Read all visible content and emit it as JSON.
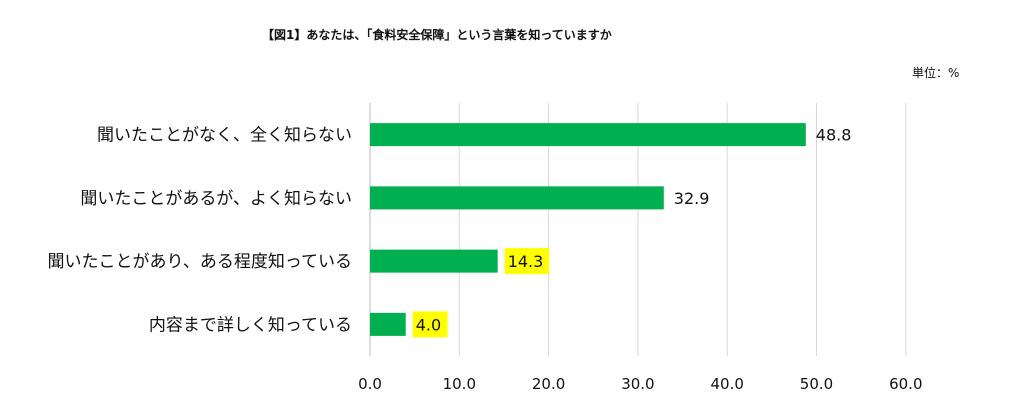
{
  "chart_data": {
    "type": "bar",
    "orientation": "horizontal",
    "title": "【図1】あなたは、「食料安全保障」という言葉を知っていますか",
    "unit_label": "単位：%",
    "categories": [
      "聞いたことがなく、全く知らない",
      "聞いたことがあるが、よく知らない",
      "聞いたことがあり、ある程度知っている",
      "内容まで詳しく知っている"
    ],
    "values": [
      48.8,
      32.9,
      14.3,
      4.0
    ],
    "value_labels": [
      "48.8",
      "32.9",
      "14.3",
      "4.0"
    ],
    "highlighted_labels": [
      false,
      false,
      true,
      true
    ],
    "xlim": [
      0,
      60
    ],
    "xticks": [
      "0.0",
      "10.0",
      "20.0",
      "30.0",
      "40.0",
      "50.0",
      "60.0"
    ],
    "grid": "vertical",
    "legend": "none",
    "colors": {
      "bar": "#00b050",
      "highlight": "#ffff00",
      "grid": "#d9d9d9"
    }
  }
}
